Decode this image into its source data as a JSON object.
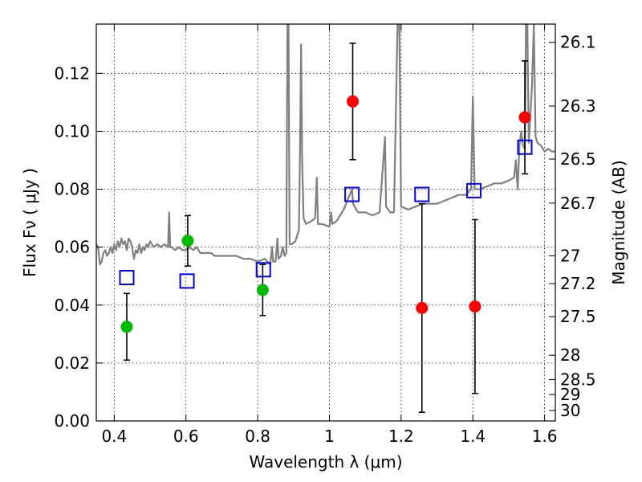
{
  "chart_data": {
    "type": "scatter",
    "xlabel": "Wavelength  λ (μm)",
    "ylabel": "Flux  Fν  ( μJy )",
    "ylabel_right": "Magnitude (AB)",
    "xlim": [
      0.35,
      1.63
    ],
    "ylim": [
      0.0,
      0.137
    ],
    "x_ticks": [
      0.4,
      0.6,
      0.8,
      1.0,
      1.2,
      1.4,
      1.6
    ],
    "x_tick_labels": [
      "0.4",
      "0.6",
      "0.8",
      "1",
      "1.2",
      "1.4",
      "1.6"
    ],
    "y_ticks": [
      0.0,
      0.02,
      0.04,
      0.06,
      0.08,
      0.1,
      0.12
    ],
    "y_tick_labels": [
      "0.00",
      "0.02",
      "0.04",
      "0.06",
      "0.08",
      "0.10",
      "0.12"
    ],
    "right_ticks": [
      {
        "label": "26.1",
        "flux": 0.1307
      },
      {
        "label": "26.3",
        "flux": 0.1087
      },
      {
        "label": "26.5",
        "flux": 0.0904
      },
      {
        "label": "26.7",
        "flux": 0.0752
      },
      {
        "label": "27",
        "flux": 0.057
      },
      {
        "label": "27.2",
        "flux": 0.0474
      },
      {
        "label": "27.5",
        "flux": 0.036
      },
      {
        "label": "28",
        "flux": 0.0227
      },
      {
        "label": "28.5",
        "flux": 0.0143
      },
      {
        "label": "29",
        "flux": 0.0091
      },
      {
        "label": "30",
        "flux": 0.0036
      }
    ],
    "grid": true,
    "series": [
      {
        "marker": "circle",
        "color": "#00bb00",
        "points": [
          {
            "x": 0.435,
            "y": 0.0325,
            "err": 0.0115
          },
          {
            "x": 0.605,
            "y": 0.0622,
            "err": 0.0087
          },
          {
            "x": 0.814,
            "y": 0.0452,
            "err": 0.0088
          }
        ]
      },
      {
        "marker": "circle",
        "color": "#ff0000",
        "points": [
          {
            "x": 1.065,
            "y": 0.1103,
            "err": 0.0201
          },
          {
            "x": 1.258,
            "y": 0.039,
            "err": 0.036
          },
          {
            "x": 1.406,
            "y": 0.0395,
            "err": 0.03
          },
          {
            "x": 1.545,
            "y": 0.1048,
            "err": 0.0195
          }
        ]
      },
      {
        "marker": "open-square",
        "color": "#0000ff",
        "points": [
          {
            "x": 0.435,
            "y": 0.0495
          },
          {
            "x": 0.603,
            "y": 0.0483
          },
          {
            "x": 0.816,
            "y": 0.0522
          },
          {
            "x": 1.063,
            "y": 0.0782
          },
          {
            "x": 1.258,
            "y": 0.0782
          },
          {
            "x": 1.403,
            "y": 0.0795
          },
          {
            "x": 1.545,
            "y": 0.0945
          }
        ]
      },
      {
        "marker": "line",
        "color": "#808080",
        "points": [
          [
            0.35,
            0.061
          ],
          [
            0.355,
            0.06
          ],
          [
            0.36,
            0.054
          ],
          [
            0.365,
            0.055
          ],
          [
            0.37,
            0.058
          ],
          [
            0.375,
            0.059
          ],
          [
            0.38,
            0.057
          ],
          [
            0.385,
            0.058
          ],
          [
            0.39,
            0.06
          ],
          [
            0.395,
            0.058
          ],
          [
            0.4,
            0.061
          ],
          [
            0.405,
            0.059
          ],
          [
            0.41,
            0.062
          ],
          [
            0.415,
            0.06
          ],
          [
            0.42,
            0.063
          ],
          [
            0.425,
            0.061
          ],
          [
            0.43,
            0.062
          ],
          [
            0.435,
            0.059
          ],
          [
            0.44,
            0.063
          ],
          [
            0.445,
            0.062
          ],
          [
            0.45,
            0.06
          ],
          [
            0.455,
            0.056
          ],
          [
            0.46,
            0.059
          ],
          [
            0.465,
            0.058
          ],
          [
            0.47,
            0.061
          ],
          [
            0.475,
            0.058
          ],
          [
            0.48,
            0.06
          ],
          [
            0.485,
            0.059
          ],
          [
            0.49,
            0.061
          ],
          [
            0.495,
            0.06
          ],
          [
            0.5,
            0.062
          ],
          [
            0.51,
            0.06
          ],
          [
            0.52,
            0.061
          ],
          [
            0.53,
            0.06
          ],
          [
            0.54,
            0.061
          ],
          [
            0.55,
            0.06
          ],
          [
            0.553,
            0.072
          ],
          [
            0.556,
            0.06
          ],
          [
            0.56,
            0.06
          ],
          [
            0.57,
            0.059
          ],
          [
            0.58,
            0.06
          ],
          [
            0.59,
            0.059
          ],
          [
            0.6,
            0.059
          ],
          [
            0.61,
            0.06
          ],
          [
            0.62,
            0.059
          ],
          [
            0.63,
            0.06
          ],
          [
            0.64,
            0.058
          ],
          [
            0.65,
            0.058
          ],
          [
            0.66,
            0.058
          ],
          [
            0.67,
            0.058
          ],
          [
            0.68,
            0.057
          ],
          [
            0.69,
            0.057
          ],
          [
            0.7,
            0.057
          ],
          [
            0.72,
            0.057
          ],
          [
            0.74,
            0.057
          ],
          [
            0.76,
            0.056
          ],
          [
            0.78,
            0.056
          ],
          [
            0.8,
            0.055
          ],
          [
            0.82,
            0.056
          ],
          [
            0.835,
            0.054
          ],
          [
            0.84,
            0.06
          ],
          [
            0.843,
            0.055
          ],
          [
            0.85,
            0.055
          ],
          [
            0.855,
            0.063
          ],
          [
            0.858,
            0.056
          ],
          [
            0.865,
            0.057
          ],
          [
            0.87,
            0.06
          ],
          [
            0.875,
            0.057
          ],
          [
            0.88,
            0.058
          ],
          [
            0.883,
            0.137
          ],
          [
            0.886,
            0.137
          ],
          [
            0.889,
            0.061
          ],
          [
            0.895,
            0.061
          ],
          [
            0.905,
            0.062
          ],
          [
            0.915,
            0.066
          ],
          [
            0.918,
            0.092
          ],
          [
            0.921,
            0.13
          ],
          [
            0.924,
            0.09
          ],
          [
            0.928,
            0.07
          ],
          [
            0.935,
            0.068
          ],
          [
            0.95,
            0.069
          ],
          [
            0.96,
            0.07
          ],
          [
            0.965,
            0.084
          ],
          [
            0.968,
            0.068
          ],
          [
            0.98,
            0.068
          ],
          [
            1.0,
            0.067
          ],
          [
            1.005,
            0.072
          ],
          [
            1.008,
            0.068
          ],
          [
            1.02,
            0.069
          ],
          [
            1.04,
            0.073
          ],
          [
            1.063,
            0.08
          ],
          [
            1.066,
            0.075
          ],
          [
            1.08,
            0.072
          ],
          [
            1.1,
            0.072
          ],
          [
            1.12,
            0.071
          ],
          [
            1.14,
            0.072
          ],
          [
            1.155,
            0.098
          ],
          [
            1.158,
            0.074
          ],
          [
            1.17,
            0.072
          ],
          [
            1.18,
            0.072
          ],
          [
            1.19,
            0.137
          ],
          [
            1.195,
            0.137
          ],
          [
            1.2,
            0.074
          ],
          [
            1.22,
            0.073
          ],
          [
            1.24,
            0.074
          ],
          [
            1.26,
            0.075
          ],
          [
            1.28,
            0.075
          ],
          [
            1.3,
            0.075
          ],
          [
            1.32,
            0.076
          ],
          [
            1.34,
            0.077
          ],
          [
            1.36,
            0.078
          ],
          [
            1.38,
            0.078
          ],
          [
            1.395,
            0.08
          ],
          [
            1.4,
            0.112
          ],
          [
            1.405,
            0.08
          ],
          [
            1.42,
            0.08
          ],
          [
            1.44,
            0.081
          ],
          [
            1.46,
            0.082
          ],
          [
            1.48,
            0.082
          ],
          [
            1.5,
            0.083
          ],
          [
            1.515,
            0.084
          ],
          [
            1.52,
            0.09
          ],
          [
            1.525,
            0.08
          ],
          [
            1.53,
            0.095
          ],
          [
            1.535,
            0.1
          ],
          [
            1.54,
            0.095
          ],
          [
            1.545,
            0.094
          ],
          [
            1.548,
            0.137
          ],
          [
            1.552,
            0.137
          ],
          [
            1.556,
            0.096
          ],
          [
            1.565,
            0.116
          ],
          [
            1.57,
            0.137
          ],
          [
            1.575,
            0.098
          ],
          [
            1.58,
            0.096
          ],
          [
            1.59,
            0.095
          ],
          [
            1.6,
            0.093
          ],
          [
            1.61,
            0.094
          ],
          [
            1.62,
            0.093
          ],
          [
            1.63,
            0.093
          ]
        ]
      }
    ]
  }
}
